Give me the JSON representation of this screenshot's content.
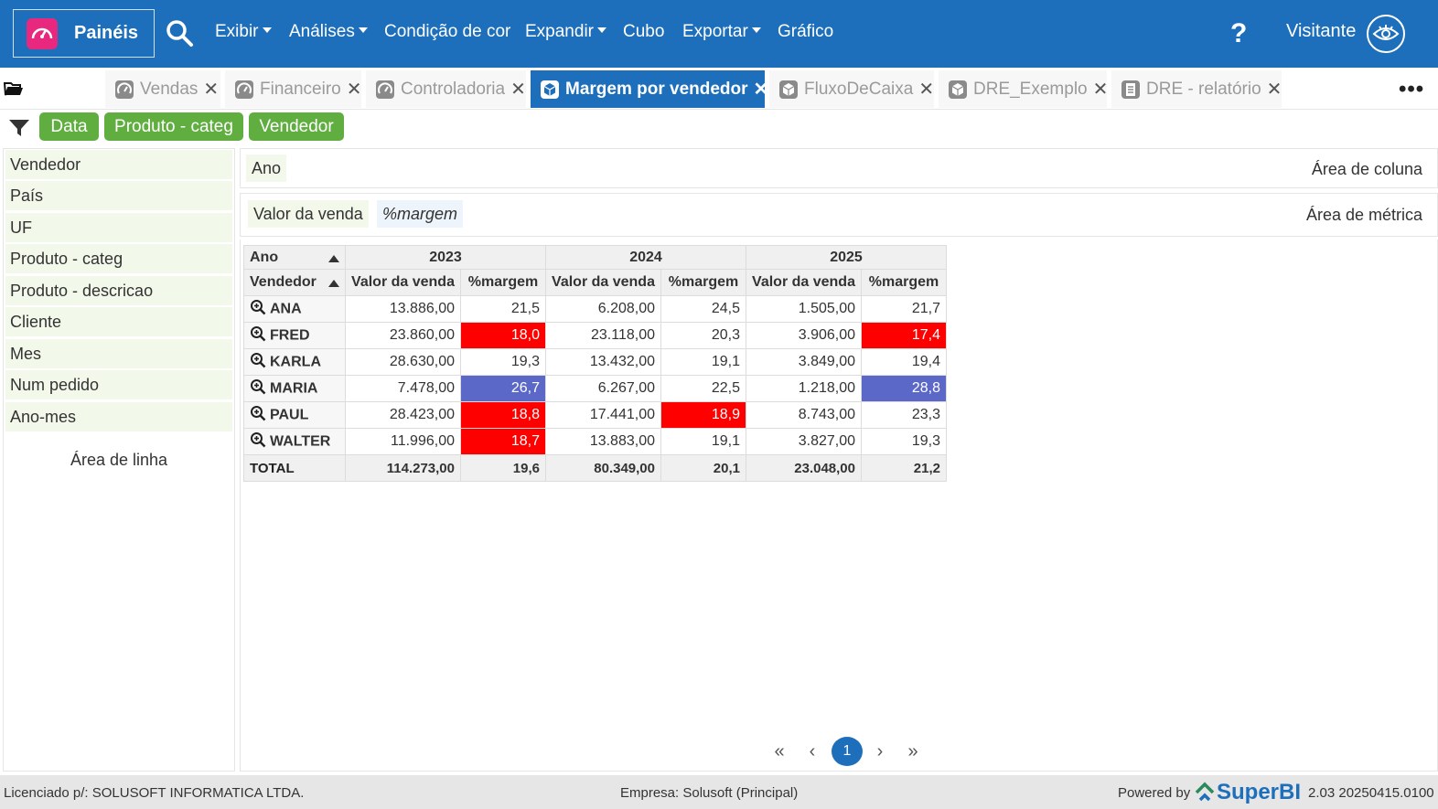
{
  "header": {
    "brand": "Painéis",
    "menu": [
      {
        "label": "Exibir",
        "caret": true
      },
      {
        "label": "Análises",
        "caret": true
      },
      {
        "label": "Condição de cor",
        "caret": false
      },
      {
        "label": "Expandir",
        "caret": true
      },
      {
        "label": "Cubo",
        "caret": false
      },
      {
        "label": "Exportar",
        "caret": true
      },
      {
        "label": "Gráfico",
        "caret": false
      }
    ],
    "help": "?",
    "user": "Visitante"
  },
  "tabs": [
    {
      "label": "Vendas",
      "icon": "dashboard-icon",
      "active": false
    },
    {
      "label": "Financeiro",
      "icon": "dashboard-icon",
      "active": false
    },
    {
      "label": "Controladoria",
      "icon": "dashboard-icon",
      "active": false
    },
    {
      "label": "Margem por vendedor",
      "icon": "cube-icon",
      "active": true
    },
    {
      "label": "FluxoDeCaixa",
      "icon": "cube-icon",
      "active": false
    },
    {
      "label": "DRE_Exemplo",
      "icon": "cube-icon",
      "active": false
    },
    {
      "label": "DRE - relatório",
      "icon": "report-icon",
      "active": false
    }
  ],
  "tab_close": "✕",
  "more": "•••",
  "filters": [
    "Data",
    "Produto - categ",
    "Vendedor"
  ],
  "fields": [
    "Vendedor",
    "País",
    "UF",
    "Produto - categ",
    "Produto - descricao",
    "Cliente",
    "Mes",
    "Num pedido",
    "Ano-mes"
  ],
  "row_area_label": "Área de linha",
  "column_area": {
    "chip": "Ano",
    "label": "Área de coluna"
  },
  "metric_area": {
    "chips": [
      "Valor da venda",
      "%margem"
    ],
    "label": "Área de métrica"
  },
  "pivot": {
    "corner_col": "Ano",
    "corner_row": "Vendedor",
    "years": [
      "2023",
      "2024",
      "2025"
    ],
    "metrics": [
      "Valor da venda",
      "%margem"
    ],
    "rows": [
      {
        "name": "ANA",
        "cells": [
          "13.886,00",
          "21,5",
          "6.208,00",
          "24,5",
          "1.505,00",
          "21,7"
        ],
        "colors": [
          "",
          "",
          "",
          "",
          "",
          ""
        ]
      },
      {
        "name": "FRED",
        "cells": [
          "23.860,00",
          "18,0",
          "23.118,00",
          "20,3",
          "3.906,00",
          "17,4"
        ],
        "colors": [
          "",
          "red",
          "",
          "",
          "",
          "red"
        ]
      },
      {
        "name": "KARLA",
        "cells": [
          "28.630,00",
          "19,3",
          "13.432,00",
          "19,1",
          "3.849,00",
          "19,4"
        ],
        "colors": [
          "",
          "",
          "",
          "",
          "",
          ""
        ]
      },
      {
        "name": "MARIA",
        "cells": [
          "7.478,00",
          "26,7",
          "6.267,00",
          "22,5",
          "1.218,00",
          "28,8"
        ],
        "colors": [
          "",
          "blue",
          "",
          "",
          "",
          "blue"
        ]
      },
      {
        "name": "PAUL",
        "cells": [
          "28.423,00",
          "18,8",
          "17.441,00",
          "18,9",
          "8.743,00",
          "23,3"
        ],
        "colors": [
          "",
          "red",
          "",
          "red",
          "",
          ""
        ]
      },
      {
        "name": "WALTER",
        "cells": [
          "11.996,00",
          "18,7",
          "13.883,00",
          "19,1",
          "3.827,00",
          "19,3"
        ],
        "colors": [
          "",
          "red",
          "",
          "",
          "",
          ""
        ]
      }
    ],
    "total": {
      "name": "TOTAL",
      "cells": [
        "114.273,00",
        "19,6",
        "80.349,00",
        "20,1",
        "23.048,00",
        "21,2"
      ]
    }
  },
  "colors": {
    "header": "#1d6fbc",
    "chip": "#5fae3f",
    "low_margin": "#ff0000",
    "high_margin": "#5c68c8"
  },
  "pagination": {
    "first": "«",
    "prev": "‹",
    "current": "1",
    "next": "›",
    "last": "»"
  },
  "footer": {
    "license": "Licenciado p/: SOLUSOFT INFORMATICA LTDA.",
    "company": "Empresa: Solusoft (Principal)",
    "powered": "Powered by",
    "brand": "SuperBI",
    "version": "2.03 20250415.0100"
  }
}
